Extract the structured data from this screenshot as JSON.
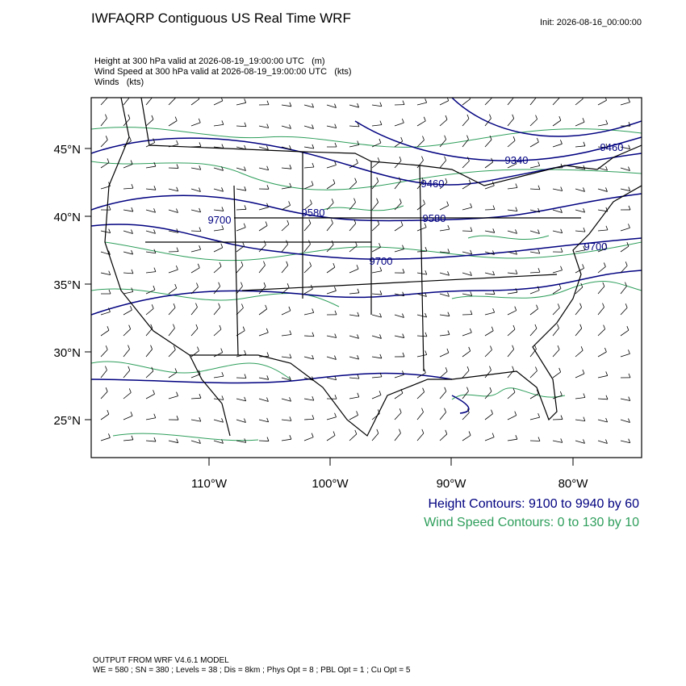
{
  "header": {
    "title": "IWFAQRP Contiguous US Real Time WRF",
    "init": "Init: 2026-08-16_00:00:00"
  },
  "fields": [
    "Height at 300 hPa valid at 2026-08-19_19:00:00 UTC   (m)",
    "Wind Speed at 300 hPa valid at 2026-08-19_19:00:00 UTC   (kts)",
    "Winds   (kts)"
  ],
  "map": {
    "lat_labels": [
      "45°N",
      "40°N",
      "35°N",
      "30°N",
      "25°N"
    ],
    "lon_labels": [
      "110°W",
      "100°W",
      "90°W",
      "80°W"
    ],
    "contour_labels": [
      "9340",
      "9460",
      "9460",
      "9580",
      "9580",
      "9700",
      "9700",
      "9700"
    ]
  },
  "legend": [
    "Height Contours: 9100 to 9940 by 60",
    "Wind Speed Contours: 0 to 130 by 10"
  ],
  "footer": [
    "OUTPUT FROM WRF V4.6.1 MODEL",
    "WE = 580 ; SN = 380 ; Levels = 38 ; Dis = 8km ; Phys Opt = 8 ; PBL Opt = 1 ; Cu Opt = 5"
  ]
}
